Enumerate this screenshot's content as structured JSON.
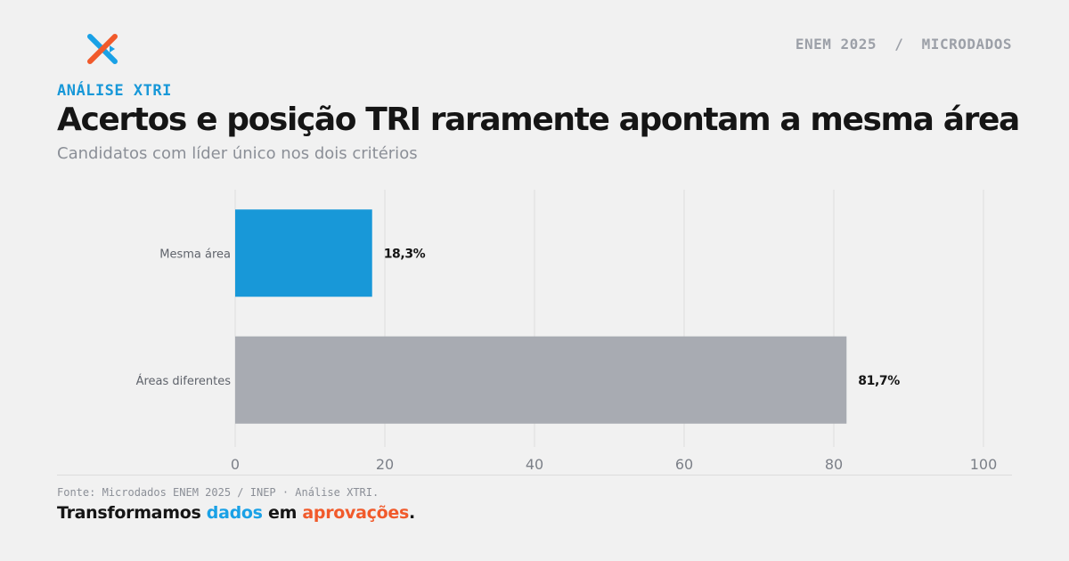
{
  "header": {
    "logo_icon": "xtri-x-logo",
    "right_label": "ENEM 2025  /  MICRODADOS",
    "kicker": "ANÁLISE XTRI",
    "title": "Acertos e posição TRI raramente apontam a mesma área",
    "subtitle": "Candidatos com líder único nos dois critérios"
  },
  "chart_data": {
    "type": "bar",
    "orientation": "horizontal",
    "categories": [
      "Mesma área",
      "Áreas diferentes"
    ],
    "values": [
      18.3,
      81.7
    ],
    "value_labels": [
      "18,3%",
      "81,7%"
    ],
    "colors": [
      "#1898d8",
      "#a8abb2"
    ],
    "xlim": [
      0,
      100
    ],
    "xticks": [
      0,
      20,
      40,
      60,
      80,
      100
    ],
    "xtick_labels": [
      "0",
      "20",
      "40",
      "60",
      "80",
      "100"
    ],
    "grid": true
  },
  "footer": {
    "source": "Fonte: Microdados ENEM 2025 / INEP · Análise XTRI.",
    "tagline": {
      "part1": "Transformamos ",
      "part2": "dados",
      "part3": " em ",
      "part4": "aprovações",
      "part5": "."
    }
  },
  "colors": {
    "accent_blue": "#1898d8",
    "accent_orange": "#f15a2b",
    "neutral_bar": "#a8abb2",
    "background": "#f1f1f1"
  }
}
